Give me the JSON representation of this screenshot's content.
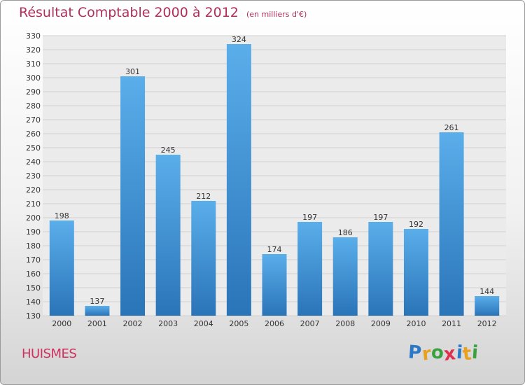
{
  "header": {
    "title": "Résultat Comptable 2000 à 2012",
    "subtitle": "(en milliers d'€)"
  },
  "commune": "HUISMES",
  "logo": {
    "letters": [
      "P",
      "r",
      "o",
      "x",
      "i",
      "t",
      "i"
    ],
    "colors": [
      "#2a78c8",
      "#e8a020",
      "#3aa040",
      "#e03050",
      "#2a78c8",
      "#e8a020",
      "#3aa040"
    ]
  },
  "colors": {
    "bar_top": "#5aaeea",
    "bar_bottom": "#2a74b8",
    "grid": "#d0d0d0",
    "title": "#b0305a"
  },
  "chart_data": {
    "type": "bar",
    "title": "Résultat Comptable 2000 à 2012",
    "subtitle": "(en milliers d'€)",
    "xlabel": "",
    "ylabel": "",
    "categories": [
      "2000",
      "2001",
      "2002",
      "2003",
      "2004",
      "2005",
      "2006",
      "2007",
      "2008",
      "2009",
      "2010",
      "2011",
      "2012"
    ],
    "values": [
      198,
      137,
      301,
      245,
      212,
      324,
      174,
      197,
      186,
      197,
      192,
      261,
      144
    ],
    "ylim": [
      130,
      330
    ],
    "yticks": [
      130,
      140,
      150,
      160,
      170,
      180,
      190,
      200,
      210,
      220,
      230,
      240,
      250,
      260,
      270,
      280,
      290,
      300,
      310,
      320,
      330
    ],
    "grid": true,
    "data_labels": true
  }
}
